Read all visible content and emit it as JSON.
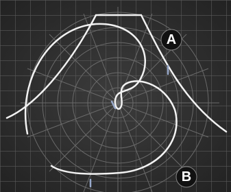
{
  "markers": {
    "a": "A",
    "b": "B"
  }
}
